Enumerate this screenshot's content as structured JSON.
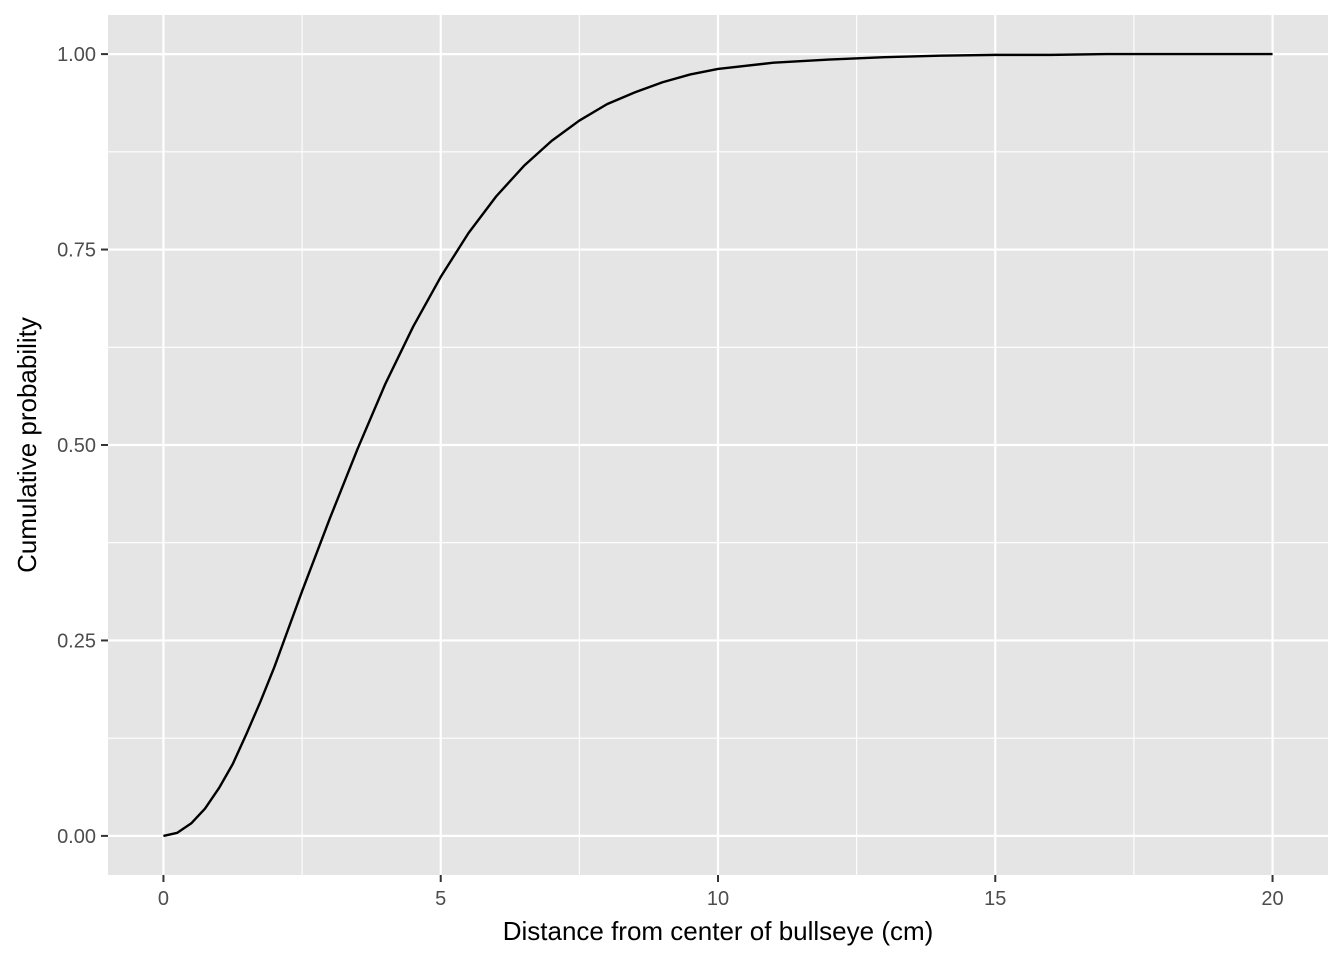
{
  "chart_data": {
    "type": "line",
    "title": "",
    "xlabel": "Distance from center of bullseye (cm)",
    "ylabel": "Cumulative probability",
    "xlim": [
      -1,
      21
    ],
    "ylim": [
      -0.05,
      1.05
    ],
    "x_ticks": [
      0,
      5,
      10,
      15,
      20
    ],
    "x_tick_labels": [
      "0",
      "5",
      "10",
      "15",
      "20"
    ],
    "y_ticks": [
      0,
      0.25,
      0.5,
      0.75,
      1
    ],
    "y_tick_labels": [
      "0.00",
      "0.25",
      "0.50",
      "0.75",
      "1.00"
    ],
    "grid": true,
    "legend": "none",
    "colors": {
      "panel": "#E5E5E5",
      "grid": "#FFFFFF",
      "line": "#000000"
    },
    "series": [
      {
        "x": [
          0,
          0.25,
          0.5,
          0.75,
          1,
          1.25,
          1.5,
          1.75,
          2,
          2.5,
          3,
          3.5,
          4,
          4.5,
          5,
          5.5,
          6,
          6.5,
          7,
          7.5,
          8,
          8.5,
          9,
          9.5,
          10,
          11,
          12,
          13,
          14,
          15,
          16,
          17,
          18,
          19,
          20
        ],
        "y": [
          0,
          0.004,
          0.016,
          0.035,
          0.061,
          0.092,
          0.131,
          0.172,
          0.216,
          0.313,
          0.406,
          0.495,
          0.578,
          0.651,
          0.715,
          0.771,
          0.818,
          0.857,
          0.889,
          0.915,
          0.936,
          0.951,
          0.964,
          0.974,
          0.981,
          0.989,
          0.993,
          0.996,
          0.998,
          0.999,
          0.999,
          1.0,
          1.0,
          1.0,
          1.0
        ]
      }
    ]
  }
}
